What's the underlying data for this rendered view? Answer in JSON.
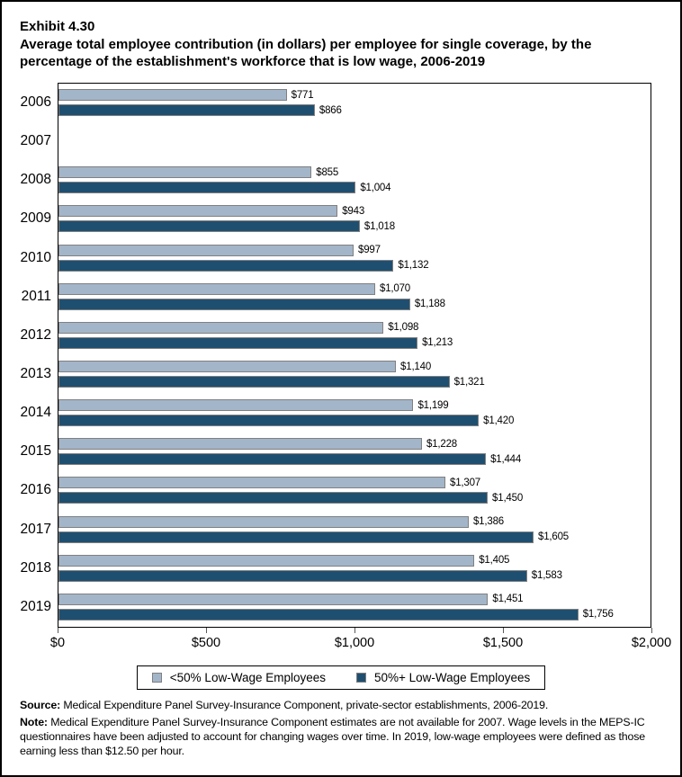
{
  "title": {
    "exhibit": "Exhibit 4.30",
    "text": "Average total employee contribution (in dollars) per employee for single coverage, by the percentage of the establishment's workforce that is low wage, 2006-2019"
  },
  "chart_data": {
    "type": "bar",
    "orientation": "horizontal",
    "title": "Average total employee contribution (in dollars) per employee for single coverage, by the percentage of the establishment's workforce that is low wage, 2006-2019",
    "categories": [
      "2006",
      "2007",
      "2008",
      "2009",
      "2010",
      "2011",
      "2012",
      "2013",
      "2014",
      "2015",
      "2016",
      "2017",
      "2018",
      "2019"
    ],
    "series": [
      {
        "name": "<50% Low-Wage Employees",
        "color": "#A3B5C9",
        "values": [
          771,
          null,
          855,
          943,
          997,
          1070,
          1098,
          1140,
          1199,
          1228,
          1307,
          1386,
          1405,
          1451
        ],
        "labels": [
          "$771",
          "",
          "$855",
          "$943",
          "$997",
          "$1,070",
          "$1,098",
          "$1,140",
          "$1,199",
          "$1,228",
          "$1,307",
          "$1,386",
          "$1,405",
          "$1,451"
        ]
      },
      {
        "name": "50%+ Low-Wage Employees",
        "color": "#1F4F70",
        "values": [
          866,
          null,
          1004,
          1018,
          1132,
          1188,
          1213,
          1321,
          1420,
          1444,
          1450,
          1605,
          1583,
          1756
        ],
        "labels": [
          "$866",
          "",
          "$1,004",
          "$1,018",
          "$1,132",
          "$1,188",
          "$1,213",
          "$1,321",
          "$1,420",
          "$1,444",
          "$1,450",
          "$1,605",
          "$1,583",
          "$1,756"
        ]
      }
    ],
    "xlabel": "",
    "ylabel": "",
    "xlim": [
      0,
      2000
    ],
    "x_ticks": [
      "$0",
      "$500",
      "$1,000",
      "$1,500",
      "$2,000"
    ],
    "x_tick_values": [
      0,
      500,
      1000,
      1500,
      2000
    ],
    "grid": false,
    "legend_position": "bottom",
    "missing_data_note": "2007 estimates not available",
    "bar_border_color": "#808080",
    "plot_border_color": "#000000"
  },
  "footer": {
    "source_label": "Source:",
    "source_text": "Medical Expenditure Panel Survey-Insurance Component, private-sector establishments, 2006-2019.",
    "note_label": "Note:",
    "note_text": "Medical Expenditure Panel Survey-Insurance Component estimates are not available for 2007. Wage levels in the MEPS-IC questionnaires have been adjusted to account for changing wages over time. In 2019, low-wage employees were defined as those earning less than $12.50 per hour."
  }
}
